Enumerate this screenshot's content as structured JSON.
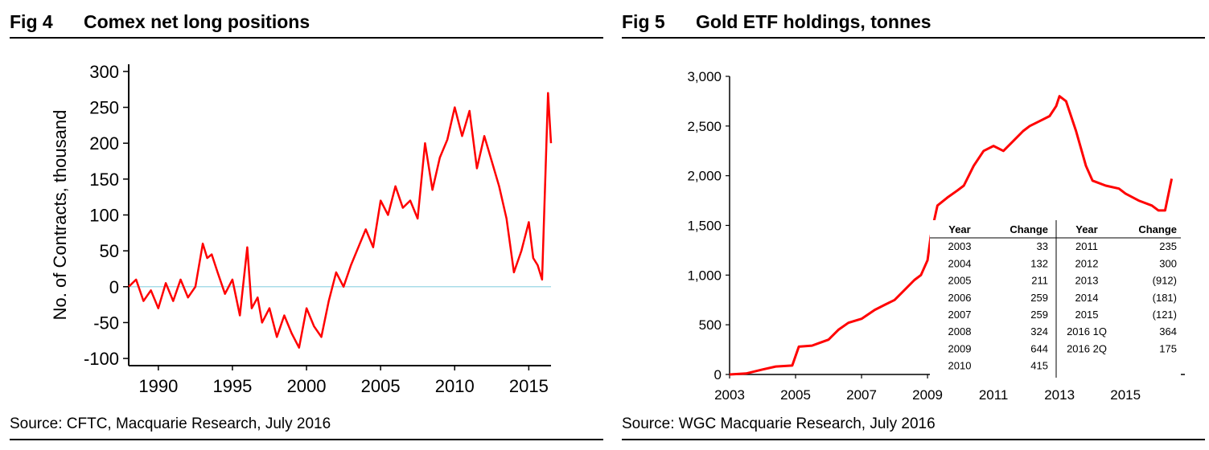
{
  "chart_data": [
    {
      "id": "fig4",
      "type": "line",
      "fig_number": "Fig 4",
      "title": "Comex net long positions",
      "source": "Source: CFTC, Macquarie Research, July 2016",
      "xlabel": "",
      "ylabel": "No. of Contracts, thousand",
      "xlim": [
        1988,
        2016.5
      ],
      "ylim": [
        -110,
        310
      ],
      "x_ticks": [
        1990,
        1995,
        2000,
        2005,
        2010,
        2015
      ],
      "x_tick_labels": [
        "1990",
        "1995",
        "2000",
        "2005",
        "2010",
        "2015"
      ],
      "y_ticks": [
        -100,
        -50,
        0,
        50,
        100,
        150,
        200,
        250,
        300
      ],
      "y_tick_labels": [
        "-100",
        "-50",
        "0",
        "50",
        "100",
        "150",
        "200",
        "250",
        "300"
      ],
      "series": [
        {
          "name": "Comex net long positions",
          "color": "#ff0000",
          "zero_line_color": "#a8dce8",
          "x": [
            1988.0,
            1988.5,
            1989.0,
            1989.5,
            1990.0,
            1990.5,
            1991.0,
            1991.5,
            1992.0,
            1992.5,
            1993.0,
            1993.3,
            1993.6,
            1994.0,
            1994.5,
            1995.0,
            1995.5,
            1996.0,
            1996.3,
            1996.7,
            1997.0,
            1997.5,
            1998.0,
            1998.5,
            1999.0,
            1999.5,
            2000.0,
            2000.5,
            2001.0,
            2001.5,
            2002.0,
            2002.5,
            2003.0,
            2003.5,
            2004.0,
            2004.5,
            2005.0,
            2005.5,
            2006.0,
            2006.5,
            2007.0,
            2007.5,
            2008.0,
            2008.5,
            2009.0,
            2009.5,
            2010.0,
            2010.5,
            2011.0,
            2011.5,
            2012.0,
            2012.5,
            2013.0,
            2013.5,
            2014.0,
            2014.5,
            2015.0,
            2015.3,
            2015.6,
            2015.9,
            2016.1,
            2016.3,
            2016.5
          ],
          "values": [
            0,
            10,
            -20,
            -5,
            -30,
            5,
            -20,
            10,
            -15,
            0,
            60,
            40,
            45,
            20,
            -10,
            10,
            -40,
            55,
            -30,
            -15,
            -50,
            -30,
            -70,
            -40,
            -65,
            -85,
            -30,
            -55,
            -70,
            -20,
            20,
            0,
            30,
            55,
            80,
            55,
            120,
            100,
            140,
            110,
            120,
            95,
            200,
            135,
            180,
            205,
            250,
            210,
            245,
            165,
            210,
            175,
            140,
            95,
            20,
            50,
            90,
            40,
            30,
            10,
            140,
            270,
            200
          ]
        }
      ]
    },
    {
      "id": "fig5",
      "type": "line",
      "fig_number": "Fig 5",
      "title": "Gold ETF holdings, tonnes",
      "source": "Source: WGC Macquarie Research, July 2016",
      "xlabel": "",
      "ylabel": "",
      "xlim": [
        2003,
        2016.8
      ],
      "ylim": [
        0,
        3000
      ],
      "x_ticks": [
        2003,
        2005,
        2007,
        2009,
        2011,
        2013,
        2015
      ],
      "x_tick_labels": [
        "2003",
        "2005",
        "2007",
        "2009",
        "2011",
        "2013",
        "2015"
      ],
      "y_ticks": [
        0,
        500,
        1000,
        1500,
        2000,
        2500,
        3000
      ],
      "y_tick_labels": [
        "0",
        "500",
        "1,000",
        "1,500",
        "2,000",
        "2,500",
        "3,000"
      ],
      "series": [
        {
          "name": "Gold ETF holdings",
          "color": "#ff0000",
          "x": [
            2003.0,
            2003.5,
            2004.0,
            2004.4,
            2004.9,
            2005.1,
            2005.5,
            2006.0,
            2006.3,
            2006.6,
            2007.0,
            2007.4,
            2007.7,
            2008.0,
            2008.3,
            2008.6,
            2008.8,
            2009.0,
            2009.1,
            2009.3,
            2009.6,
            2009.9,
            2010.1,
            2010.4,
            2010.7,
            2011.0,
            2011.3,
            2011.6,
            2011.9,
            2012.1,
            2012.4,
            2012.7,
            2012.9,
            2013.0,
            2013.2,
            2013.5,
            2013.8,
            2014.0,
            2014.4,
            2014.8,
            2015.0,
            2015.4,
            2015.8,
            2016.0,
            2016.2,
            2016.4
          ],
          "values": [
            0,
            10,
            50,
            80,
            90,
            280,
            290,
            350,
            450,
            520,
            560,
            650,
            700,
            750,
            850,
            950,
            1000,
            1150,
            1400,
            1700,
            1780,
            1850,
            1900,
            2100,
            2250,
            2300,
            2250,
            2350,
            2450,
            2500,
            2550,
            2600,
            2700,
            2800,
            2750,
            2450,
            2100,
            1950,
            1900,
            1870,
            1820,
            1750,
            1700,
            1650,
            1650,
            1970
          ]
        }
      ],
      "table": {
        "headers": [
          "Year",
          "Change",
          "Year",
          "Change"
        ],
        "left_rows": [
          [
            "2003",
            "33"
          ],
          [
            "2004",
            "132"
          ],
          [
            "2005",
            "211"
          ],
          [
            "2006",
            "259"
          ],
          [
            "2007",
            "259"
          ],
          [
            "2008",
            "324"
          ],
          [
            "2009",
            "644"
          ],
          [
            "2010",
            "415"
          ]
        ],
        "right_rows": [
          [
            "2011",
            "235"
          ],
          [
            "2012",
            "300"
          ],
          [
            "2013",
            "(912)"
          ],
          [
            "2014",
            "(181)"
          ],
          [
            "2015",
            "(121)"
          ],
          [
            "2016 1Q",
            "364"
          ],
          [
            "2016 2Q",
            "175"
          ]
        ],
        "negative_color": "#e00000"
      }
    }
  ]
}
